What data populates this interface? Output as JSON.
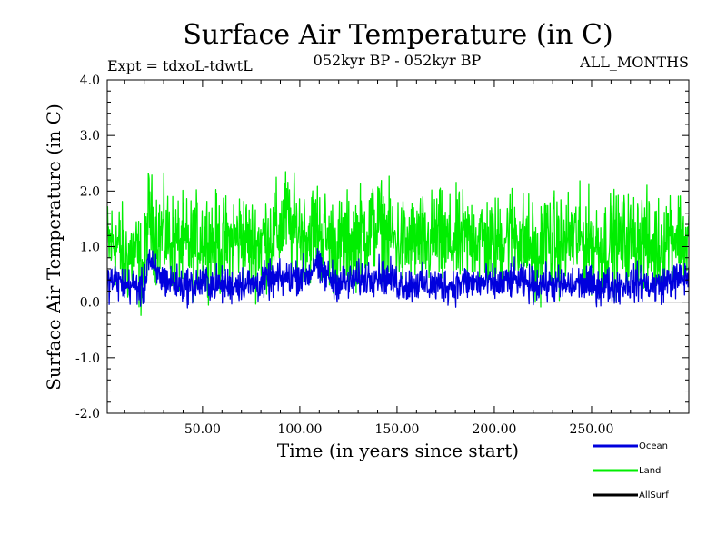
{
  "chart_data": {
    "type": "line",
    "title": "Surface Air Temperature (in C)",
    "experiment": "Expt = tdxoL-tdwtL",
    "period": "052kyr BP - 052kyr BP",
    "months": "ALL_MONTHS",
    "xlabel": "Time (in years since start)",
    "ylabel": "Surface Air Temperature (in C)",
    "xlim": [
      1,
      300
    ],
    "ylim": [
      -2.0,
      4.0
    ],
    "x_ticks": [
      50,
      100,
      150,
      200,
      250
    ],
    "x_tick_labels": [
      "50.00",
      "100.00",
      "150.00",
      "200.00",
      "250.00"
    ],
    "y_ticks": [
      -2.0,
      -1.0,
      0.0,
      1.0,
      2.0,
      3.0,
      4.0
    ],
    "y_tick_labels": [
      "-2.0",
      "-1.0",
      "0.0",
      "1.0",
      "2.0",
      "3.0",
      "4.0"
    ],
    "zero_line": 0.0,
    "series": [
      {
        "name": "Land",
        "color": "#00ee00",
        "x": [
          1,
          5,
          10,
          15,
          20,
          22,
          25,
          30,
          35,
          40,
          45,
          50,
          55,
          60,
          65,
          70,
          75,
          80,
          85,
          90,
          93,
          95,
          100,
          105,
          108,
          110,
          115,
          120,
          125,
          130,
          135,
          140,
          145,
          150,
          155,
          160,
          165,
          170,
          175,
          180,
          185,
          190,
          195,
          200,
          205,
          210,
          215,
          220,
          222,
          225,
          230,
          235,
          240,
          245,
          250,
          255,
          260,
          265,
          270,
          275,
          280,
          285,
          290,
          295,
          300
        ],
        "values": [
          1.0,
          1.1,
          0.8,
          0.9,
          0.5,
          1.6,
          1.3,
          1.2,
          1.1,
          1.0,
          1.0,
          1.2,
          1.1,
          1.0,
          1.1,
          1.2,
          1.0,
          1.1,
          1.2,
          1.3,
          1.6,
          1.3,
          1.3,
          1.2,
          1.4,
          1.3,
          1.1,
          1.0,
          1.1,
          1.2,
          1.3,
          1.4,
          1.2,
          1.1,
          1.0,
          1.1,
          1.0,
          1.2,
          1.0,
          1.1,
          1.1,
          1.2,
          1.1,
          1.0,
          1.2,
          1.3,
          1.1,
          1.0,
          0.6,
          1.2,
          1.1,
          1.0,
          1.2,
          1.1,
          1.1,
          1.0,
          1.1,
          1.1,
          1.1,
          1.2,
          1.0,
          1.0,
          1.3,
          1.2,
          1.0
        ],
        "noise": 0.42
      },
      {
        "name": "Ocean",
        "color": "#0000dd",
        "x": [
          1,
          5,
          10,
          15,
          20,
          22,
          25,
          30,
          35,
          40,
          45,
          50,
          55,
          60,
          65,
          70,
          75,
          80,
          85,
          90,
          95,
          100,
          105,
          108,
          110,
          115,
          120,
          125,
          130,
          135,
          140,
          145,
          150,
          155,
          160,
          165,
          170,
          175,
          180,
          185,
          190,
          195,
          200,
          205,
          210,
          215,
          220,
          225,
          230,
          235,
          240,
          245,
          250,
          255,
          260,
          265,
          270,
          275,
          280,
          285,
          290,
          295,
          300
        ],
        "values": [
          0.35,
          0.4,
          0.3,
          0.3,
          0.2,
          0.85,
          0.55,
          0.4,
          0.35,
          0.3,
          0.3,
          0.35,
          0.35,
          0.3,
          0.3,
          0.35,
          0.3,
          0.35,
          0.4,
          0.4,
          0.45,
          0.5,
          0.5,
          0.75,
          0.55,
          0.45,
          0.35,
          0.35,
          0.4,
          0.45,
          0.5,
          0.45,
          0.35,
          0.3,
          0.35,
          0.3,
          0.3,
          0.3,
          0.3,
          0.35,
          0.35,
          0.35,
          0.3,
          0.35,
          0.4,
          0.35,
          0.3,
          0.35,
          0.3,
          0.3,
          0.3,
          0.35,
          0.3,
          0.3,
          0.3,
          0.3,
          0.35,
          0.35,
          0.3,
          0.3,
          0.4,
          0.4,
          0.45
        ],
        "noise": 0.16
      },
      {
        "name": "AllSurf",
        "color": "#000000",
        "x": [],
        "values": []
      }
    ],
    "legend": {
      "placement": "bottom-right",
      "entries": [
        {
          "name": "Ocean",
          "color": "#0000dd"
        },
        {
          "name": "Land",
          "color": "#00ee00"
        },
        {
          "name": "AllSurf",
          "color": "#000000"
        }
      ]
    }
  }
}
